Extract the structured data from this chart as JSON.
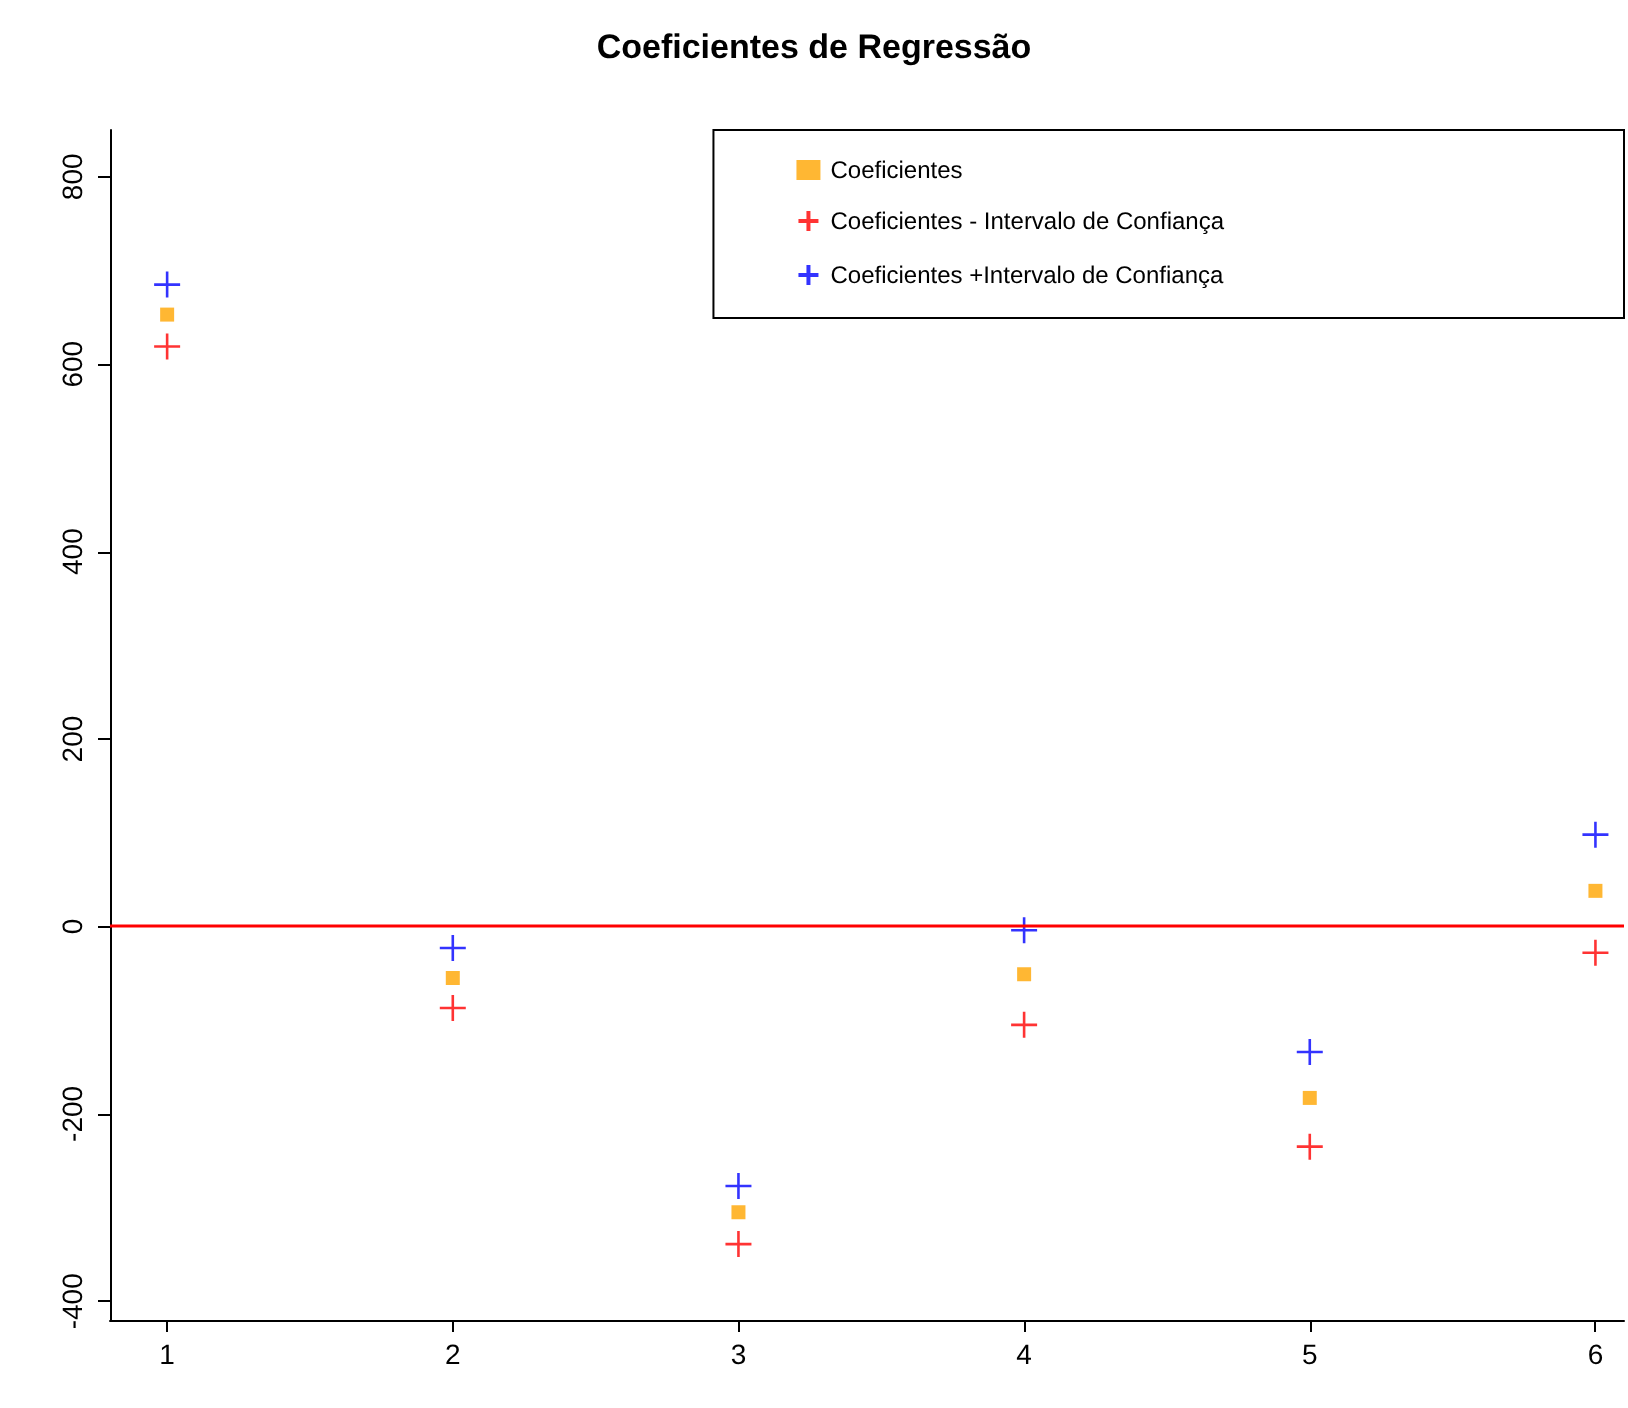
{
  "chart_data": {
    "type": "scatter",
    "title": "Coeficientes de Regressão",
    "x": [
      1,
      2,
      3,
      4,
      5,
      6
    ],
    "xlim": [
      0.8,
      6.1
    ],
    "xticks": [
      1,
      2,
      3,
      4,
      5,
      6
    ],
    "ylim": [
      -420,
      850
    ],
    "yticks": [
      -400,
      -200,
      0,
      200,
      400,
      600,
      800
    ],
    "grid": false,
    "legend": "top right",
    "series": [
      {
        "name": "Coeficientes",
        "color": "#ffa500",
        "marker": "square",
        "values": [
          653,
          -55,
          -305,
          -51,
          -183,
          38
        ]
      },
      {
        "name": "Coeficientes - Intervalo de Confiança",
        "color": "#ff0000",
        "marker": "cross",
        "values": [
          619,
          -87,
          -339,
          -105,
          -235,
          -28
        ]
      },
      {
        "name": "Coeficientes +Intervalo de Confiança",
        "color": "#0000ff",
        "marker": "cross",
        "values": [
          685,
          -23,
          -277,
          -4,
          -134,
          98
        ]
      }
    ],
    "ref_lines": [
      {
        "axis": "y",
        "value": 0,
        "color": "#ff0000"
      }
    ]
  }
}
